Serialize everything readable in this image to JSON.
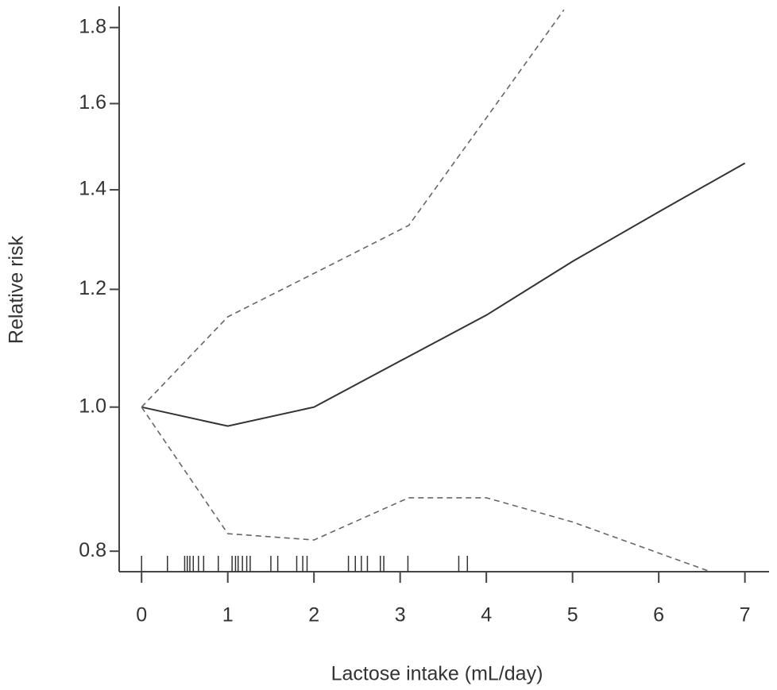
{
  "chart_data": {
    "type": "line",
    "xlabel": "Lactose intake (mL/day)",
    "ylabel": "Relative risk",
    "xlim": [
      -0.26,
      7.28
    ],
    "xticks": [
      0,
      1,
      2,
      3,
      4,
      5,
      6,
      7
    ],
    "ylim": [
      0.775,
      1.86
    ],
    "ylog": true,
    "yticks": [
      {
        "value": 0.8,
        "label": "0.8"
      },
      {
        "value": 1.0,
        "label": "1.0"
      },
      {
        "value": 1.2,
        "label": "1.2"
      },
      {
        "value": 1.4,
        "label": "1.4"
      },
      {
        "value": 1.6,
        "label": "1.6"
      },
      {
        "value": 1.8,
        "label": "1.8"
      }
    ],
    "series": [
      {
        "color": "#333333",
        "dash": false,
        "x": [
          0,
          1,
          2,
          3,
          4,
          5,
          6,
          7
        ],
        "values": [
          1.0,
          0.971,
          1.0,
          1.074,
          1.153,
          1.253,
          1.353,
          1.459
        ]
      },
      {
        "color": "#666666",
        "dash": true,
        "x": [
          0,
          1,
          2,
          3.1,
          4,
          4.9
        ],
        "values": [
          1.0,
          1.15,
          1.23,
          1.325,
          1.565,
          1.85
        ]
      },
      {
        "color": "#666666",
        "dash": true,
        "x": [
          0,
          1,
          2,
          3.1,
          4,
          5,
          6.6
        ],
        "values": [
          1.0,
          0.822,
          0.814,
          0.869,
          0.869,
          0.837,
          0.775
        ]
      }
    ],
    "rug": [
      0,
      0.3,
      0.5,
      0.53,
      0.56,
      0.6,
      0.66,
      0.72,
      0.89,
      1.05,
      1.09,
      1.12,
      1.17,
      1.22,
      1.26,
      1.5,
      1.58,
      1.8,
      1.87,
      1.92,
      2.4,
      2.48,
      2.55,
      2.62,
      2.77,
      2.81,
      3.09,
      3.68,
      3.78
    ]
  }
}
